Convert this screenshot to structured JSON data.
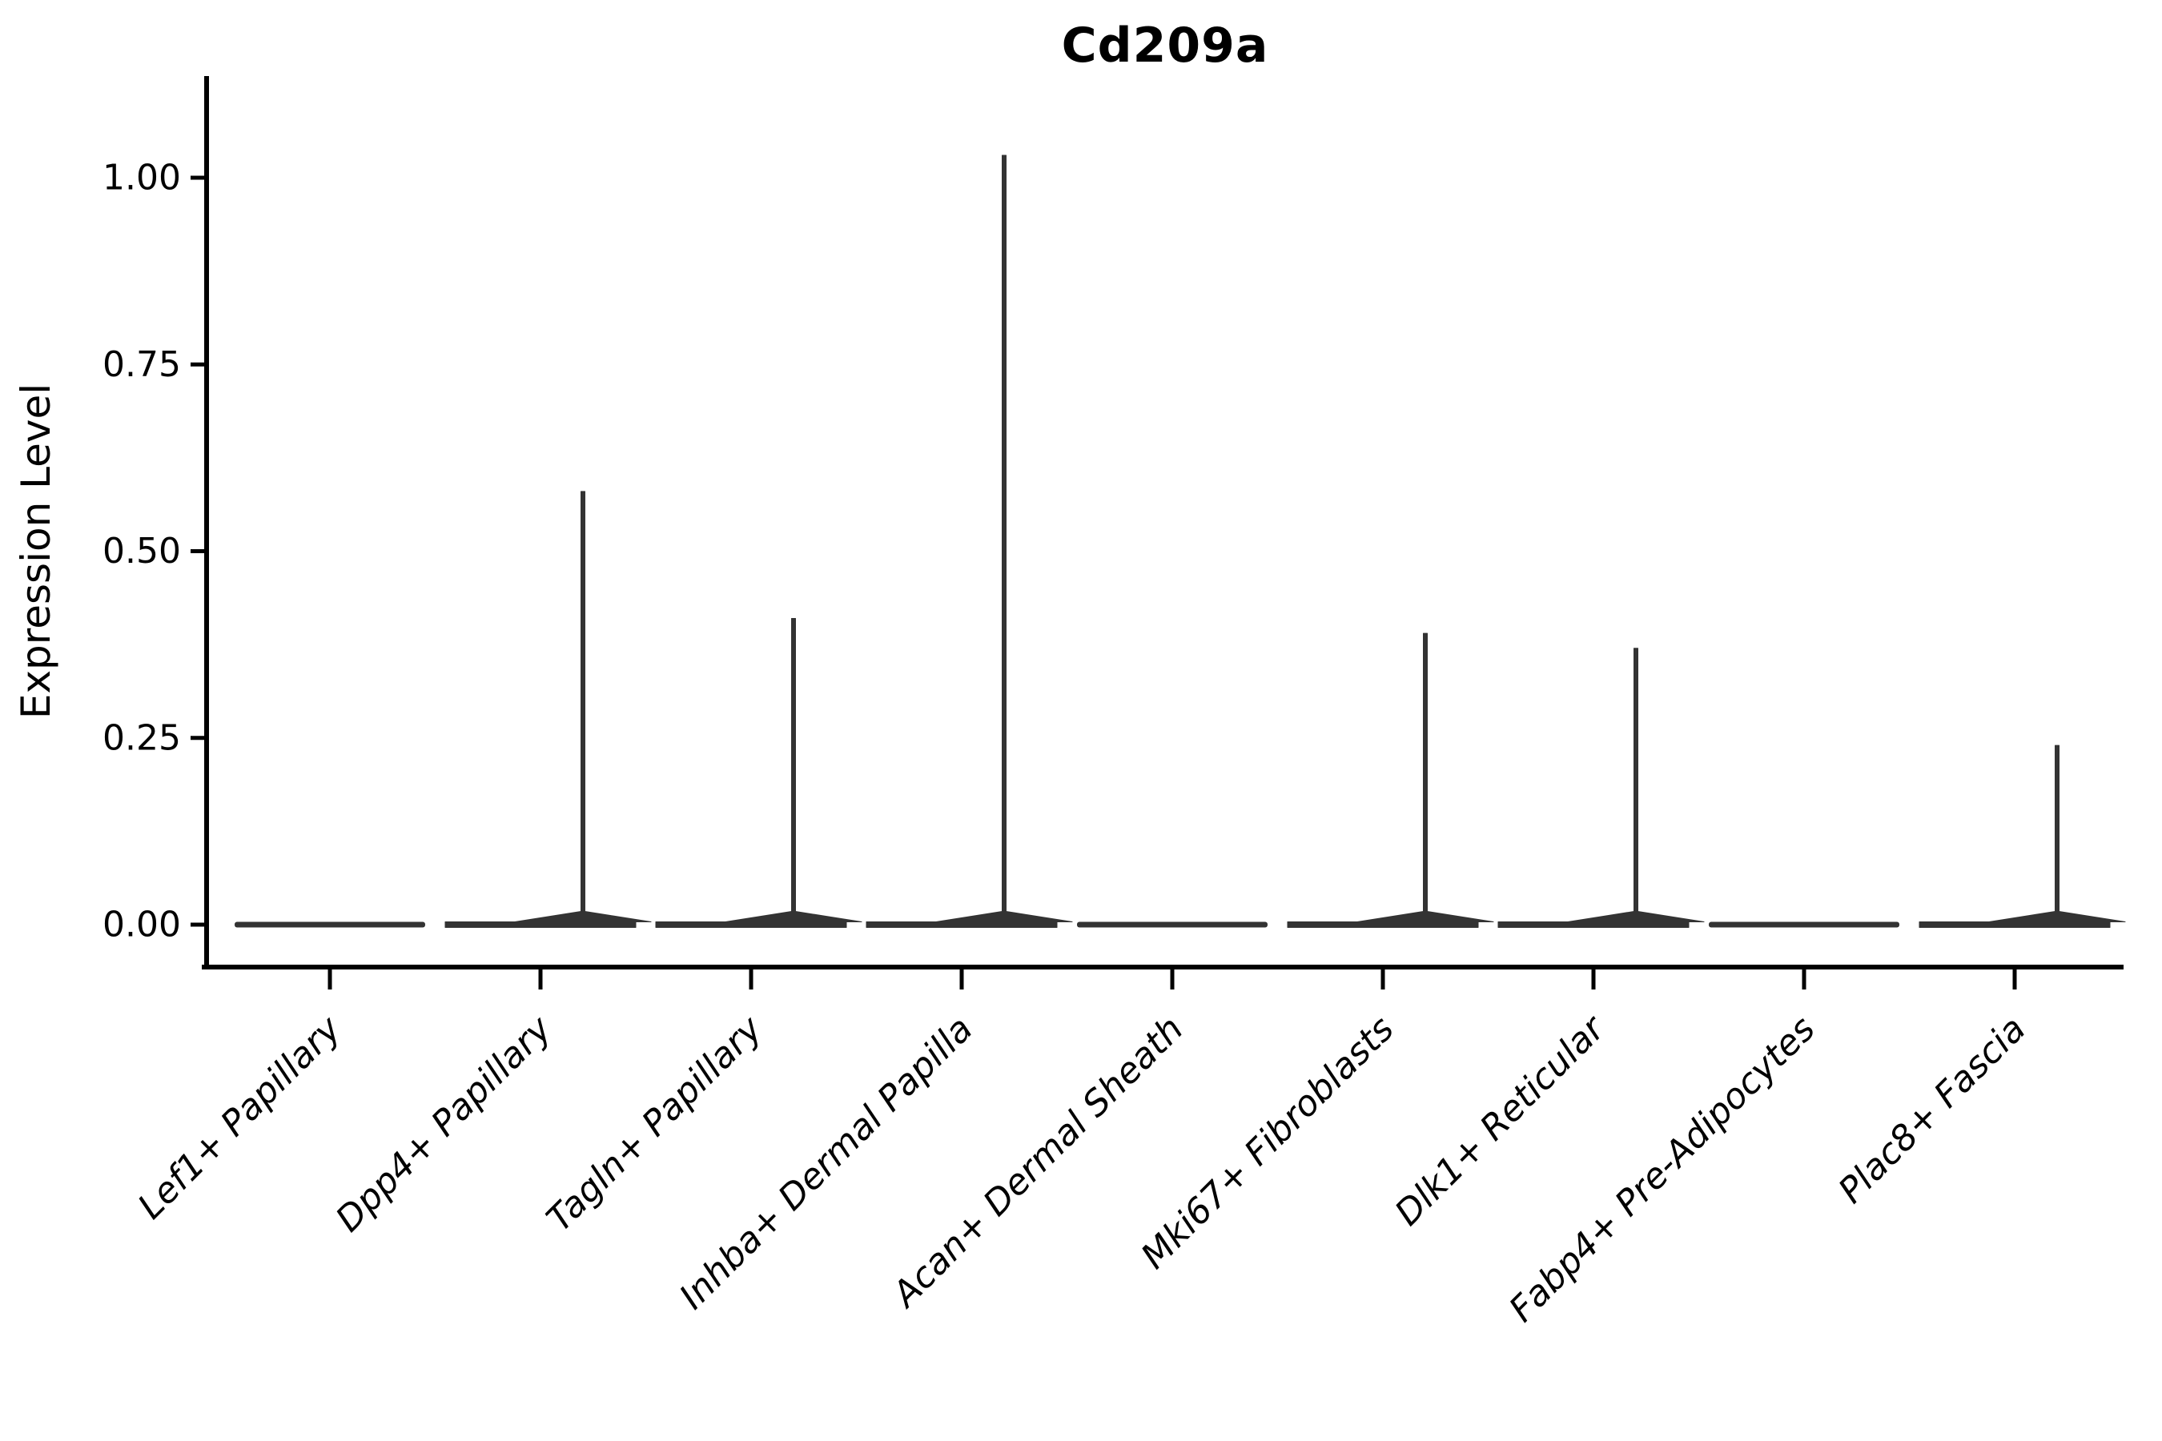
{
  "figure": {
    "title": "Cd209a"
  },
  "chart_data": {
    "type": "violin",
    "title": "Cd209a",
    "xlabel": "",
    "ylabel": "Expression Level",
    "categories": [
      "Lef1+ Papillary",
      "Dpp4+ Papillary",
      "Tagln+ Papillary",
      "Inhba+ Dermal Papilla",
      "Acan+ Dermal Sheath",
      "Mki67+ Fibroblasts",
      "Dlk1+ Reticular",
      "Fabp4+ Pre-Adipocytes",
      "Plac8+ Fascia"
    ],
    "violins": [
      {
        "category": "Lef1+ Papillary",
        "max_expression": 0.0,
        "has_spike": false
      },
      {
        "category": "Dpp4+ Papillary",
        "max_expression": 0.58,
        "has_spike": true
      },
      {
        "category": "Tagln+ Papillary",
        "max_expression": 0.41,
        "has_spike": true
      },
      {
        "category": "Inhba+ Dermal Papilla",
        "max_expression": 1.03,
        "has_spike": true
      },
      {
        "category": "Acan+ Dermal Sheath",
        "max_expression": 0.0,
        "has_spike": false
      },
      {
        "category": "Mki67+ Fibroblasts",
        "max_expression": 0.39,
        "has_spike": true
      },
      {
        "category": "Dlk1+ Reticular",
        "max_expression": 0.37,
        "has_spike": true
      },
      {
        "category": "Fabp4+ Pre-Adipocytes",
        "max_expression": 0.0,
        "has_spike": false
      },
      {
        "category": "Plac8+ Fascia",
        "max_expression": 0.24,
        "has_spike": true
      }
    ],
    "y_ticks": [
      "0.00",
      "0.25",
      "0.50",
      "0.75",
      "1.00"
    ],
    "y_tick_values": [
      0,
      0.25,
      0.5,
      0.75,
      1.0
    ],
    "ylim": [
      0,
      1.08
    ],
    "grid": false,
    "legend": "none",
    "colors": {
      "axis": "#000000",
      "violin": "#333333",
      "text": "#000000",
      "background": "#ffffff"
    }
  }
}
